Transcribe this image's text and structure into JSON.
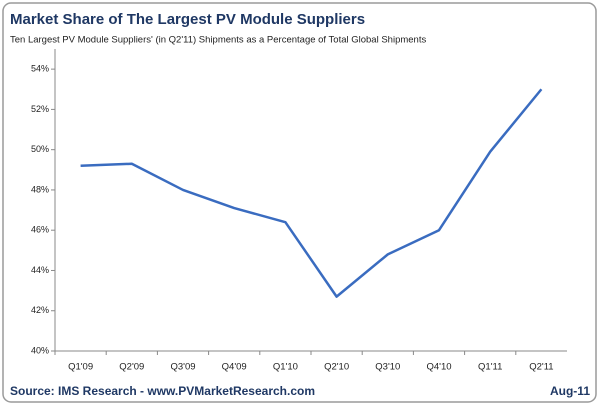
{
  "chart_data": {
    "type": "line",
    "title": "Market Share of The Largest PV Module Suppliers",
    "subtitle": "Ten Largest PV Module Suppliers' (in Q2'11) Shipments as a Percentage of Total Global Shipments",
    "source": "Source: IMS Research - www.PVMarketResearch.com",
    "date": "Aug-11",
    "categories": [
      "Q1'09",
      "Q2'09",
      "Q3'09",
      "Q4'09",
      "Q1'10",
      "Q2'10",
      "Q3'10",
      "Q4'10",
      "Q1'11",
      "Q2'11"
    ],
    "values": [
      49.2,
      49.3,
      48.0,
      47.1,
      46.4,
      42.7,
      44.8,
      46.0,
      49.9,
      53.0
    ],
    "color": "#3a6cc0",
    "ylim": [
      40,
      55
    ],
    "yticks": [
      {
        "value": 40,
        "label": "40%"
      },
      {
        "value": 42,
        "label": "42%"
      },
      {
        "value": 44,
        "label": "44%"
      },
      {
        "value": 46,
        "label": "46%"
      },
      {
        "value": 48,
        "label": "48%"
      },
      {
        "value": 50,
        "label": "50%"
      },
      {
        "value": 52,
        "label": "52%"
      },
      {
        "value": 54,
        "label": "54%"
      }
    ],
    "grid": false
  }
}
